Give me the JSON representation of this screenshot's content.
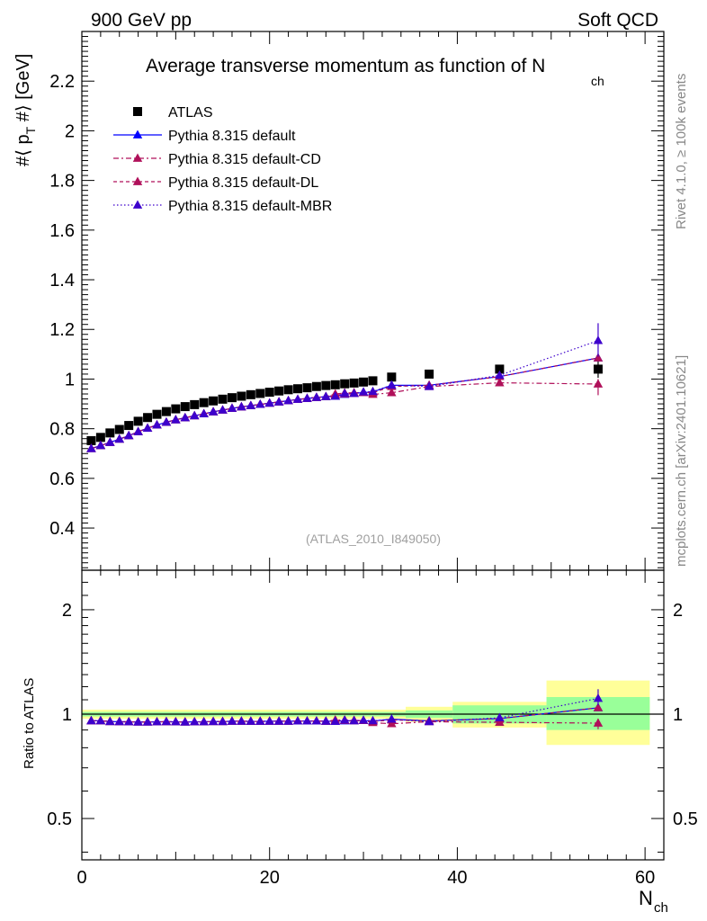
{
  "header": {
    "left": "900 GeV pp",
    "right": "Soft QCD"
  },
  "title": {
    "main": "Average transverse momentum as function of N",
    "sub": "ch"
  },
  "watermark": "(ATLAS_2010_I849050)",
  "side_labels": {
    "rivet": "Rivet 4.1.0, ≥ 100k events",
    "mcplots": "mcplots.cern.ch [arXiv:2401.10621]"
  },
  "axes": {
    "ylabel_top": {
      "p1": "#⟨ p",
      "sub": "T",
      "p2": " #⟩ [GeV]"
    },
    "ylabel_ratio": "Ratio to ATLAS",
    "xlabel": {
      "main": "N",
      "sub": "ch"
    }
  },
  "colors": {
    "atlas": "#000000",
    "default": "#0000ff",
    "cd": "#b0105a",
    "dl": "#b0105a",
    "mbr": "#3d00cc",
    "band_yellow": "#ffff99",
    "band_green": "#99ff99"
  },
  "legend": [
    {
      "label": "ATLAS",
      "key": "atlas",
      "icon": "square-marker-icon"
    },
    {
      "label": "Pythia 8.315 default",
      "key": "default",
      "icon": "triangle-marker-icon"
    },
    {
      "label": "Pythia 8.315 default-CD",
      "key": "cd",
      "icon": "triangle-marker-icon"
    },
    {
      "label": "Pythia 8.315 default-DL",
      "key": "dl",
      "icon": "triangle-marker-icon"
    },
    {
      "label": "Pythia 8.315 default-MBR",
      "key": "mbr",
      "icon": "triangle-marker-icon"
    }
  ],
  "chart_data": [
    {
      "type": "scatter",
      "title": "Average transverse momentum as function of N_ch",
      "xlabel": "N_ch",
      "ylabel": "<p_T> [GeV]",
      "xlim": [
        0,
        62
      ],
      "ylim": [
        0.23,
        2.4
      ],
      "yticks": [
        0.4,
        0.6,
        0.8,
        1,
        1.2,
        1.4,
        1.6,
        1.8,
        2,
        2.2
      ],
      "series": [
        {
          "name": "ATLAS",
          "x": [
            1,
            2,
            3,
            4,
            5,
            6,
            7,
            8,
            9,
            10,
            11,
            12,
            13,
            14,
            15,
            16,
            17,
            18,
            19,
            20,
            21,
            22,
            23,
            24,
            25,
            26,
            27,
            28,
            29,
            30,
            31,
            33,
            37,
            44.5,
            55
          ],
          "y": [
            0.752,
            0.765,
            0.783,
            0.797,
            0.813,
            0.83,
            0.845,
            0.858,
            0.869,
            0.88,
            0.889,
            0.897,
            0.905,
            0.912,
            0.919,
            0.925,
            0.931,
            0.937,
            0.942,
            0.947,
            0.952,
            0.957,
            0.961,
            0.965,
            0.97,
            0.974,
            0.977,
            0.981,
            0.984,
            0.988,
            0.993,
            1.008,
            1.02,
            1.04,
            1.04
          ]
        },
        {
          "name": "Pythia 8.315 default",
          "x": [
            1,
            2,
            3,
            4,
            5,
            6,
            7,
            8,
            9,
            10,
            11,
            12,
            13,
            14,
            15,
            16,
            17,
            18,
            19,
            20,
            21,
            22,
            23,
            24,
            25,
            26,
            27,
            28,
            29,
            30,
            31,
            33,
            37,
            44.5,
            55
          ],
          "y": [
            0.72,
            0.732,
            0.745,
            0.758,
            0.772,
            0.788,
            0.802,
            0.815,
            0.826,
            0.836,
            0.844,
            0.852,
            0.86,
            0.868,
            0.875,
            0.882,
            0.888,
            0.893,
            0.898,
            0.903,
            0.908,
            0.913,
            0.918,
            0.922,
            0.926,
            0.929,
            0.931,
            0.938,
            0.942,
            0.946,
            0.948,
            0.975,
            0.975,
            1.01,
            1.085
          ]
        },
        {
          "name": "Pythia 8.315 default-CD",
          "x": [
            1,
            2,
            3,
            4,
            5,
            6,
            7,
            8,
            9,
            10,
            11,
            12,
            13,
            14,
            15,
            16,
            17,
            18,
            19,
            20,
            21,
            22,
            23,
            24,
            25,
            26,
            27,
            28,
            29,
            30,
            31,
            33,
            37,
            44.5,
            55
          ],
          "y": [
            0.72,
            0.732,
            0.745,
            0.758,
            0.772,
            0.788,
            0.802,
            0.815,
            0.826,
            0.836,
            0.844,
            0.852,
            0.86,
            0.868,
            0.875,
            0.882,
            0.888,
            0.893,
            0.898,
            0.903,
            0.908,
            0.913,
            0.918,
            0.922,
            0.926,
            0.929,
            0.94,
            0.944,
            0.945,
            0.946,
            0.938,
            0.945,
            0.97,
            0.985,
            0.98
          ]
        },
        {
          "name": "Pythia 8.315 default-DL",
          "x": [
            1,
            2,
            3,
            4,
            5,
            6,
            7,
            8,
            9,
            10,
            11,
            12,
            13,
            14,
            15,
            16,
            17,
            18,
            19,
            20,
            21,
            22,
            23,
            24,
            25,
            26,
            27,
            28,
            29,
            30,
            31,
            33,
            37,
            44.5,
            55
          ],
          "y": [
            0.72,
            0.732,
            0.745,
            0.758,
            0.772,
            0.788,
            0.802,
            0.815,
            0.826,
            0.836,
            0.844,
            0.852,
            0.86,
            0.868,
            0.875,
            0.882,
            0.888,
            0.893,
            0.898,
            0.903,
            0.908,
            0.913,
            0.918,
            0.922,
            0.926,
            0.929,
            0.935,
            0.94,
            0.942,
            0.946,
            0.945,
            0.97,
            0.975,
            1.01,
            1.085
          ]
        },
        {
          "name": "Pythia 8.315 default-MBR",
          "x": [
            1,
            2,
            3,
            4,
            5,
            6,
            7,
            8,
            9,
            10,
            11,
            12,
            13,
            14,
            15,
            16,
            17,
            18,
            19,
            20,
            21,
            22,
            23,
            24,
            25,
            26,
            27,
            28,
            29,
            30,
            31,
            33,
            37,
            44.5,
            55
          ],
          "y": [
            0.72,
            0.732,
            0.745,
            0.758,
            0.772,
            0.788,
            0.802,
            0.815,
            0.826,
            0.836,
            0.844,
            0.852,
            0.86,
            0.868,
            0.875,
            0.882,
            0.888,
            0.893,
            0.898,
            0.903,
            0.908,
            0.913,
            0.918,
            0.922,
            0.926,
            0.929,
            0.931,
            0.942,
            0.942,
            0.948,
            0.95,
            0.975,
            0.97,
            1.015,
            1.155
          ]
        }
      ]
    },
    {
      "type": "scatter",
      "title": "Ratio to ATLAS",
      "xlabel": "N_ch",
      "ylabel": "Ratio to ATLAS",
      "xlim": [
        0,
        62
      ],
      "ylim": [
        0.38,
        2.6
      ],
      "yscale": "log",
      "yticks": [
        0.5,
        1,
        2
      ],
      "xticks": [
        0,
        20,
        40,
        60
      ],
      "bands": {
        "edges": [
          0,
          34.5,
          39.5,
          49.5,
          60.5
        ],
        "green": [
          [
            0.985,
            1.015
          ],
          [
            0.975,
            1.025
          ],
          [
            0.94,
            1.06
          ],
          [
            0.9,
            1.12
          ]
        ],
        "yellow": [
          [
            0.97,
            1.03
          ],
          [
            0.95,
            1.05
          ],
          [
            0.915,
            1.085
          ],
          [
            0.815,
            1.25
          ]
        ]
      },
      "series": [
        {
          "name": "Pythia 8.315 default",
          "x": [
            1,
            2,
            3,
            4,
            5,
            6,
            7,
            8,
            9,
            10,
            11,
            12,
            13,
            14,
            15,
            16,
            17,
            18,
            19,
            20,
            21,
            22,
            23,
            24,
            25,
            26,
            27,
            28,
            29,
            30,
            31,
            33,
            37,
            44.5,
            55
          ],
          "y": [
            0.957,
            0.957,
            0.952,
            0.951,
            0.95,
            0.949,
            0.949,
            0.95,
            0.951,
            0.95,
            0.949,
            0.95,
            0.95,
            0.952,
            0.952,
            0.954,
            0.954,
            0.953,
            0.953,
            0.954,
            0.954,
            0.954,
            0.955,
            0.955,
            0.955,
            0.954,
            0.953,
            0.956,
            0.957,
            0.958,
            0.955,
            0.967,
            0.956,
            0.971,
            1.043
          ]
        },
        {
          "name": "Pythia 8.315 default-CD",
          "x": [
            1,
            2,
            3,
            4,
            5,
            6,
            7,
            8,
            9,
            10,
            11,
            12,
            13,
            14,
            15,
            16,
            17,
            18,
            19,
            20,
            21,
            22,
            23,
            24,
            25,
            26,
            27,
            28,
            29,
            30,
            31,
            33,
            37,
            44.5,
            55
          ],
          "y": [
            0.957,
            0.957,
            0.952,
            0.951,
            0.95,
            0.949,
            0.949,
            0.95,
            0.951,
            0.95,
            0.949,
            0.95,
            0.95,
            0.952,
            0.952,
            0.954,
            0.954,
            0.953,
            0.953,
            0.954,
            0.954,
            0.954,
            0.955,
            0.955,
            0.955,
            0.954,
            0.962,
            0.962,
            0.96,
            0.958,
            0.945,
            0.938,
            0.951,
            0.947,
            0.942
          ]
        },
        {
          "name": "Pythia 8.315 default-DL",
          "x": [
            1,
            2,
            3,
            4,
            5,
            6,
            7,
            8,
            9,
            10,
            11,
            12,
            13,
            14,
            15,
            16,
            17,
            18,
            19,
            20,
            21,
            22,
            23,
            24,
            25,
            26,
            27,
            28,
            29,
            30,
            31,
            33,
            37,
            44.5,
            55
          ],
          "y": [
            0.957,
            0.957,
            0.952,
            0.951,
            0.95,
            0.949,
            0.949,
            0.95,
            0.951,
            0.95,
            0.949,
            0.95,
            0.95,
            0.952,
            0.952,
            0.954,
            0.954,
            0.953,
            0.953,
            0.954,
            0.954,
            0.954,
            0.955,
            0.955,
            0.955,
            0.954,
            0.957,
            0.958,
            0.957,
            0.958,
            0.952,
            0.962,
            0.956,
            0.971,
            1.043
          ]
        },
        {
          "name": "Pythia 8.315 default-MBR",
          "x": [
            1,
            2,
            3,
            4,
            5,
            6,
            7,
            8,
            9,
            10,
            11,
            12,
            13,
            14,
            15,
            16,
            17,
            18,
            19,
            20,
            21,
            22,
            23,
            24,
            25,
            26,
            27,
            28,
            29,
            30,
            31,
            33,
            37,
            44.5,
            55
          ],
          "y": [
            0.957,
            0.957,
            0.952,
            0.951,
            0.95,
            0.949,
            0.949,
            0.95,
            0.951,
            0.95,
            0.949,
            0.95,
            0.95,
            0.952,
            0.952,
            0.954,
            0.954,
            0.953,
            0.953,
            0.954,
            0.954,
            0.954,
            0.955,
            0.955,
            0.955,
            0.954,
            0.953,
            0.96,
            0.957,
            0.96,
            0.957,
            0.967,
            0.951,
            0.976,
            1.11
          ]
        }
      ]
    }
  ]
}
